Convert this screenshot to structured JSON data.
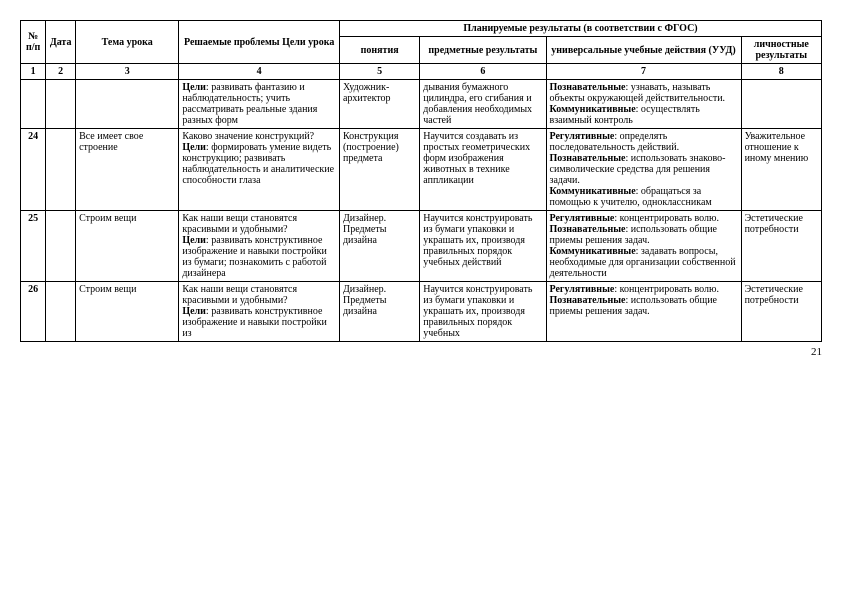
{
  "header": {
    "group_label": "Планируемые результаты (в соответствии с ФГОС)",
    "cols": {
      "num": "№ п/п",
      "date": "Дата",
      "topic": "Тема урока",
      "goals": "Решаемые проблемы Цели урока",
      "concepts": "понятия",
      "subject": "предметные результаты",
      "uud": "универсальные учебные действия (УУД)",
      "personal": "личностные результаты"
    },
    "nums": {
      "c1": "1",
      "c2": "2",
      "c3": "3",
      "c4": "4",
      "c5": "5",
      "c6": "6",
      "c7": "7",
      "c8": "8"
    }
  },
  "rows": [
    {
      "num": "",
      "date": "",
      "topic": "",
      "goals": "Цели: развивать фантазию и наблюдательность; учить рассматривать реальные здания разных форм",
      "concepts": "Художник-архитектор",
      "subject": "дывания бумажного цилиндра, его сгибания и добавления необходимых частей",
      "uud": "Познавательные: узнавать, называть объекты окружающей действительности.\nКоммуникативные: осуществлять взаимный контроль",
      "personal": ""
    },
    {
      "num": "24",
      "date": "",
      "topic": "Все имеет свое строение",
      "goals": "Каково значение конструкций?\nЦели: формировать умение видеть конструкцию; развивать наблюдательность и аналитические способности глаза",
      "concepts": "Конструкция (построение) предмета",
      "subject": "Научится создавать из простых геометрических форм изображения животных в технике аппликации",
      "uud": "Регулятивные: определять последовательность действий.\nПознавательные: использовать знаково-символические средства для решения задачи.\nКоммуникативные: обращаться за помощью к учителю, одноклассникам",
      "personal": "Уважительное отношение к иному мнению"
    },
    {
      "num": "25",
      "date": "",
      "topic": "Строим вещи",
      "goals": "Как наши вещи становятся красивыми и удобными?\nЦели: развивать конструктивное изображение и навыки постройки из бумаги; познакомить с работой дизайнера",
      "concepts": "Дизайнер. Предметы дизайна",
      "subject": "Научится конструировать из бумаги упаковки и украшать их, производя правильных порядок учебных действий",
      "uud": "Регулятивные: концентрировать волю.\nПознавательные: использовать общие приемы решения задач.\nКоммуникативные: задавать вопросы, необходимые для организации собственной деятельности",
      "personal": "Эстетические потребности"
    },
    {
      "num": "26",
      "date": "",
      "topic": "Строим вещи",
      "goals": "Как наши вещи становятся красивыми и удобными?\nЦели: развивать конструктивное изображение и навыки постройки из",
      "concepts": "Дизайнер. Предметы дизайна",
      "subject": "Научится конструировать из бумаги упаковки и украшать их, производя правильных порядок учебных",
      "uud": "Регулятивные: концентрировать волю.\nПознавательные: использовать общие приемы решения задач.",
      "personal": "Эстетические потребности"
    }
  ],
  "page_number": "21"
}
